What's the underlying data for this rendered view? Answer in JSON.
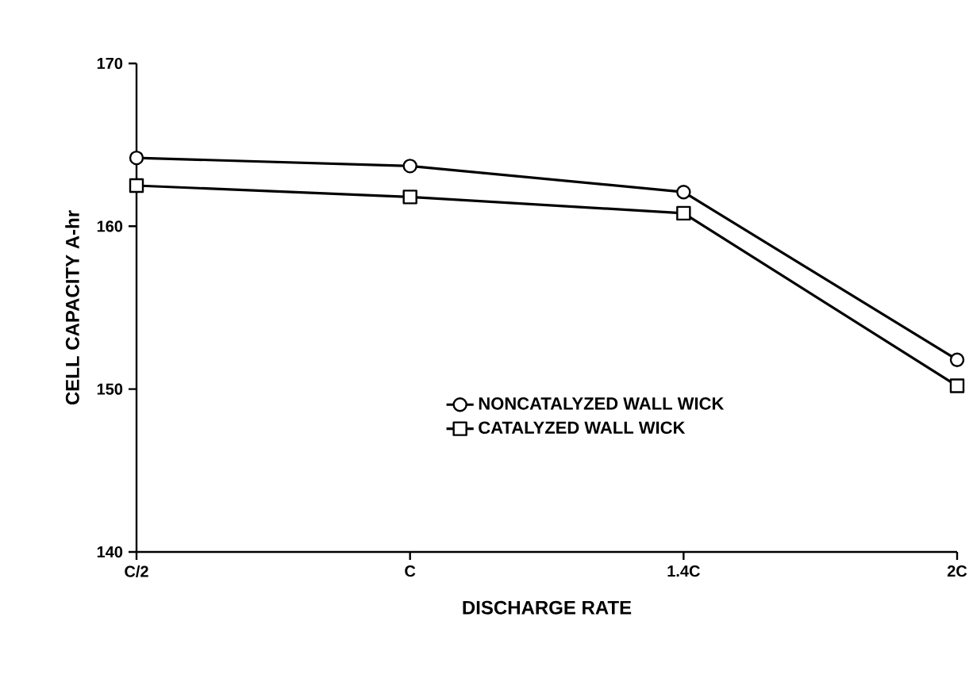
{
  "chart_data": {
    "type": "line",
    "xlabel": "DISCHARGE RATE",
    "ylabel": "CELL CAPACITY A-hr",
    "categories": [
      "C/2",
      "C",
      "1.4C",
      "2C"
    ],
    "series": [
      {
        "name": "NONCATALYZED WALL WICK",
        "color": "#000000",
        "marker": "circle",
        "values": [
          164.2,
          163.7,
          162.1,
          151.8
        ]
      },
      {
        "name": "CATALYZED WALL WICK",
        "color": "#000000",
        "marker": "square",
        "values": [
          162.5,
          161.8,
          160.8,
          150.2
        ]
      }
    ],
    "ylim": [
      140,
      170
    ],
    "yticks": [
      140,
      150,
      160,
      170
    ],
    "grid": false,
    "legend": "bottom",
    "line_style": "solid"
  }
}
